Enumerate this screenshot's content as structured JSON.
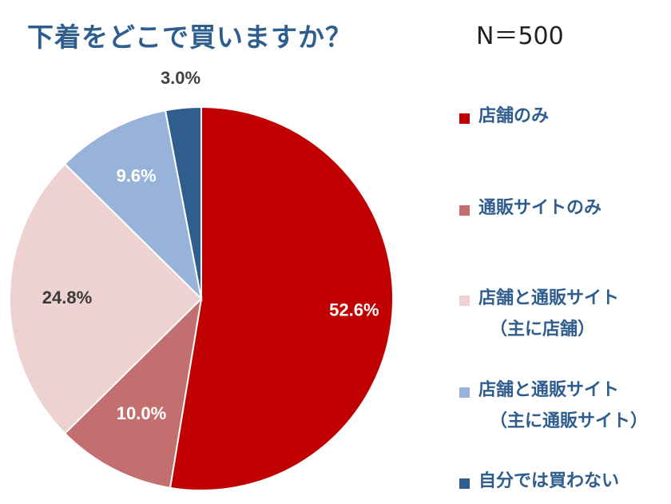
{
  "chart_data": {
    "type": "pie",
    "title": "下着をどこで買いますか？",
    "subtitle": "N＝500",
    "slices": [
      {
        "label": "店舗のみ",
        "value": 52.6,
        "display": "52.6%",
        "color": "#c00000",
        "label_color": "#ffffff"
      },
      {
        "label": "通販サイトのみ",
        "value": 10.0,
        "display": "10.0%",
        "color": "#c46f6f",
        "label_color": "#ffffff"
      },
      {
        "label": "店舗と通販サイト（主に店舗）",
        "value": 24.8,
        "display": "24.8%",
        "color": "#eed1d1",
        "label_color": "#3a3a3a"
      },
      {
        "label": "店舗と通販サイト（主に通販サイト）",
        "value": 9.6,
        "display": "9.6%",
        "color": "#97b3d9",
        "label_color": "#ffffff"
      },
      {
        "label": "自分では買わない",
        "value": 3.0,
        "display": "3.0%",
        "color": "#2f5d8e",
        "label_color": "#404040"
      }
    ],
    "legend": [
      {
        "line1": "店舗のみ",
        "line2": ""
      },
      {
        "line1": "通販サイトのみ",
        "line2": ""
      },
      {
        "line1": "店舗と通販サイト",
        "line2": "（主に店舗）"
      },
      {
        "line1": "店舗と通販サイト",
        "line2": "（主に通販サイト）"
      },
      {
        "line1": "自分では買わない",
        "line2": ""
      }
    ],
    "legend_position": "right"
  }
}
